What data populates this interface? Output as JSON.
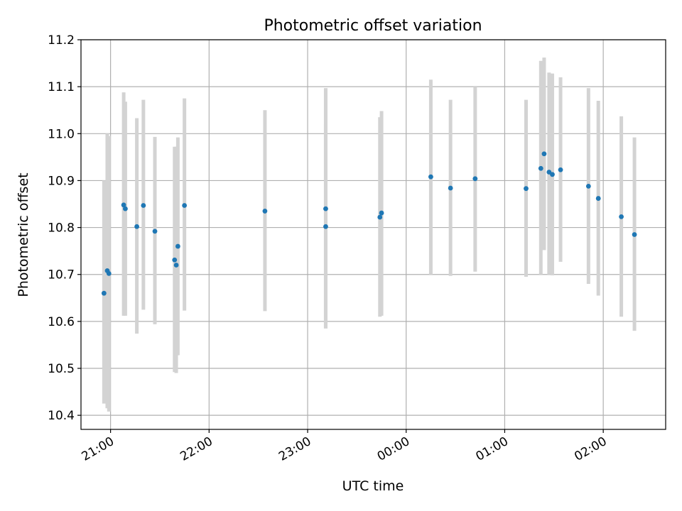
{
  "chart_data": {
    "type": "scatter",
    "title": "Photometric offset variation",
    "xlabel": "UTC time",
    "ylabel": "Photometric offset",
    "x_axis_kind": "time",
    "xlim": [
      "20:42",
      "02:38"
    ],
    "xticks": [
      "21:00",
      "22:00",
      "23:00",
      "00:00",
      "01:00",
      "02:00"
    ],
    "ylim": [
      10.37,
      11.2
    ],
    "yticks": [
      "10.4",
      "10.5",
      "10.6",
      "10.7",
      "10.8",
      "10.9",
      "11.0",
      "11.1",
      "11.2"
    ],
    "grid": true,
    "legend": "none",
    "colors": {
      "points": "#1f77b4",
      "error_bars": "#d3d3d3",
      "grid": "#b0b0b0"
    },
    "points": [
      {
        "x": "20:56",
        "y": 10.66,
        "ylow": 10.425,
        "yhigh": 10.9
      },
      {
        "x": "20:58",
        "y": 10.708,
        "ylow": 10.415,
        "yhigh": 11.0
      },
      {
        "x": "20:59",
        "y": 10.702,
        "ylow": 10.408,
        "yhigh": 10.995
      },
      {
        "x": "21:08",
        "y": 10.848,
        "ylow": 10.612,
        "yhigh": 11.088
      },
      {
        "x": "21:09",
        "y": 10.84,
        "ylow": 10.612,
        "yhigh": 11.068
      },
      {
        "x": "21:16",
        "y": 10.802,
        "ylow": 10.574,
        "yhigh": 11.033
      },
      {
        "x": "21:20",
        "y": 10.847,
        "ylow": 10.625,
        "yhigh": 11.072
      },
      {
        "x": "21:27",
        "y": 10.792,
        "ylow": 10.594,
        "yhigh": 10.993
      },
      {
        "x": "21:39",
        "y": 10.731,
        "ylow": 10.492,
        "yhigh": 10.972
      },
      {
        "x": "21:40",
        "y": 10.72,
        "ylow": 10.49,
        "yhigh": 10.972
      },
      {
        "x": "21:41",
        "y": 10.76,
        "ylow": 10.528,
        "yhigh": 10.992
      },
      {
        "x": "21:45",
        "y": 10.847,
        "ylow": 10.623,
        "yhigh": 11.075
      },
      {
        "x": "22:34",
        "y": 10.835,
        "ylow": 10.622,
        "yhigh": 11.05
      },
      {
        "x": "23:11",
        "y": 10.84,
        "ylow": 10.585,
        "yhigh": 11.097
      },
      {
        "x": "23:11",
        "y": 10.802,
        "ylow": 10.585,
        "yhigh": 11.02
      },
      {
        "x": "23:44",
        "y": 10.822,
        "ylow": 10.61,
        "yhigh": 11.035
      },
      {
        "x": "23:45",
        "y": 10.831,
        "ylow": 10.612,
        "yhigh": 11.048
      },
      {
        "x": "00:15",
        "y": 10.908,
        "ylow": 10.7,
        "yhigh": 11.115
      },
      {
        "x": "00:27",
        "y": 10.884,
        "ylow": 10.697,
        "yhigh": 11.072
      },
      {
        "x": "00:42",
        "y": 10.904,
        "ylow": 10.706,
        "yhigh": 11.1
      },
      {
        "x": "01:13",
        "y": 10.883,
        "ylow": 10.695,
        "yhigh": 11.072
      },
      {
        "x": "01:22",
        "y": 10.926,
        "ylow": 10.7,
        "yhigh": 11.155
      },
      {
        "x": "01:24",
        "y": 10.957,
        "ylow": 10.752,
        "yhigh": 11.162
      },
      {
        "x": "01:27",
        "y": 10.918,
        "ylow": 10.7,
        "yhigh": 11.13
      },
      {
        "x": "01:29",
        "y": 10.913,
        "ylow": 10.698,
        "yhigh": 11.128
      },
      {
        "x": "01:34",
        "y": 10.923,
        "ylow": 10.727,
        "yhigh": 11.12
      },
      {
        "x": "01:51",
        "y": 10.888,
        "ylow": 10.68,
        "yhigh": 11.097
      },
      {
        "x": "01:57",
        "y": 10.862,
        "ylow": 10.655,
        "yhigh": 11.07
      },
      {
        "x": "02:11",
        "y": 10.823,
        "ylow": 10.61,
        "yhigh": 11.037
      },
      {
        "x": "02:19",
        "y": 10.785,
        "ylow": 10.58,
        "yhigh": 10.992
      }
    ]
  }
}
